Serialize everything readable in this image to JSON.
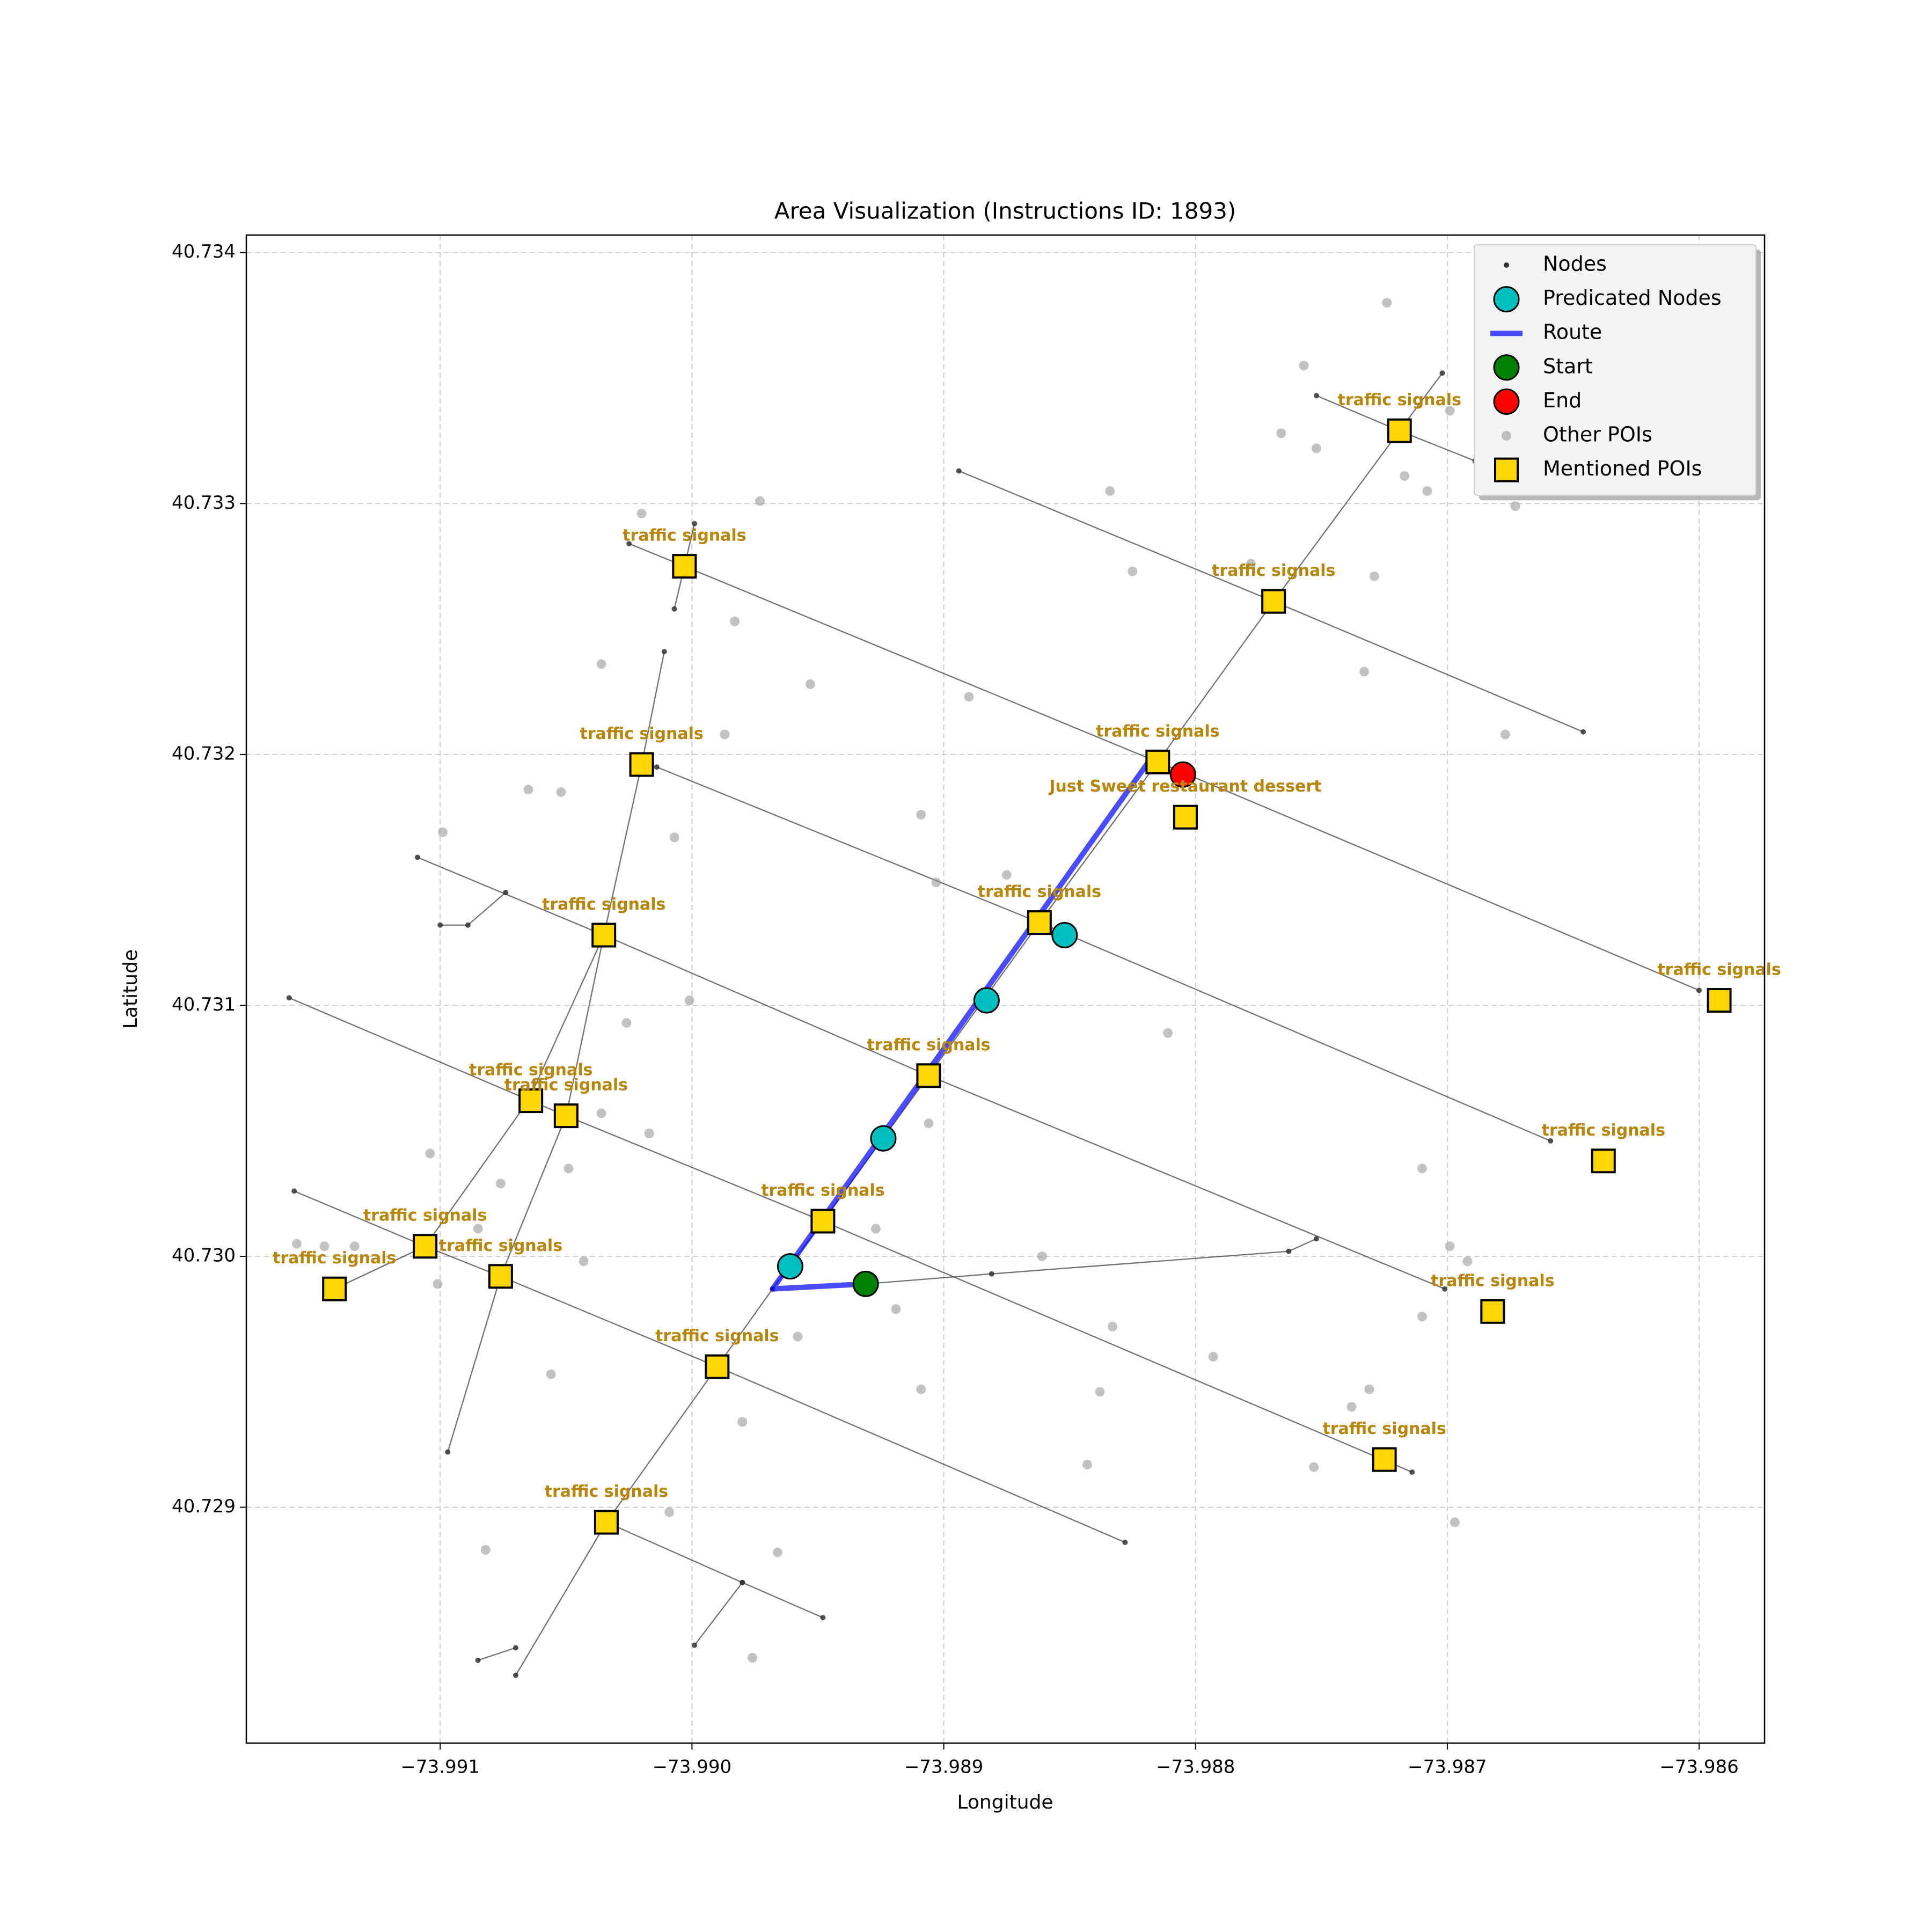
{
  "chart_data": {
    "type": "scatter",
    "title": "Area Visualization (Instructions ID: 1893)",
    "xlabel": "Longitude",
    "ylabel": "Latitude",
    "xlim": [
      -73.99177,
      -73.98574
    ],
    "ylim": [
      40.72806,
      40.73407
    ],
    "xticks": [
      {
        "value": -73.991,
        "label": "−73.991"
      },
      {
        "value": -73.99,
        "label": "−73.990"
      },
      {
        "value": -73.989,
        "label": "−73.989"
      },
      {
        "value": -73.988,
        "label": "−73.988"
      },
      {
        "value": -73.987,
        "label": "−73.987"
      },
      {
        "value": -73.986,
        "label": "−73.986"
      }
    ],
    "yticks": [
      40.729,
      {
        "value": 40.73,
        "label": "40.730"
      },
      40.731,
      40.732,
      40.733,
      40.734
    ],
    "grid": true,
    "legend": "upper right",
    "series": [
      {
        "name": "Nodes",
        "color": "#333333",
        "style": "line-dot",
        "x": [
          -73.98894,
          -73.98769,
          -73.98646,
          null,
          -73.99025,
          -73.99003,
          -73.98815,
          -73.986,
          null,
          -73.99014,
          -73.98862,
          -73.98659,
          null,
          -73.99109,
          -73.99035,
          -73.98906,
          -73.98701,
          null,
          -73.9916,
          -73.9905,
          -73.98948,
          -73.98714,
          null,
          -73.99158,
          -73.99106,
          -73.99076,
          -73.9899,
          -73.98828,
          null,
          -73.99034,
          -73.9898,
          -73.98948,
          null,
          -73.98752,
          -73.98719,
          -73.98689,
          null,
          -73.98702,
          -73.98719,
          -73.98769,
          -73.98815,
          -73.98862,
          -73.98906,
          -73.98948,
          -73.98968,
          -73.9899,
          -73.99034,
          -73.9907,
          null,
          -73.98999,
          -73.99003,
          -73.99007,
          null,
          -73.99011,
          -73.9902,
          -73.99035,
          -73.9905,
          -73.99076,
          -73.99097,
          null,
          -73.99035,
          -73.99065,
          -73.99106,
          -73.99142,
          null,
          -73.991,
          -73.99089,
          -73.99074,
          null,
          -73.99085,
          -73.9907,
          null,
          -73.98999,
          -73.9898,
          null,
          -73.98931,
          -73.98881,
          -73.98763,
          -73.98752
        ],
        "y": [
          40.73313,
          40.73261,
          40.73209,
          null,
          40.73284,
          40.73275,
          40.73197,
          40.73106,
          null,
          40.73195,
          40.73133,
          40.73046,
          null,
          40.73159,
          40.73128,
          40.73072,
          40.72987,
          null,
          40.73103,
          40.73056,
          40.73014,
          40.72914,
          null,
          40.73026,
          40.73004,
          40.72992,
          40.72956,
          40.72886,
          null,
          40.72894,
          40.7287,
          40.72856,
          null,
          40.73343,
          40.73329,
          40.73317,
          null,
          40.73352,
          40.73329,
          40.73261,
          40.73197,
          40.73133,
          40.73072,
          40.73014,
          40.72987,
          40.72956,
          40.72894,
          40.72833,
          null,
          40.73292,
          40.73275,
          40.73258,
          null,
          40.73241,
          40.73196,
          40.73128,
          40.73056,
          40.72992,
          40.72922,
          null,
          40.73128,
          40.73062,
          40.73004,
          40.72987,
          null,
          40.73132,
          40.73132,
          40.73145,
          null,
          40.72839,
          40.72844,
          null,
          40.72845,
          40.7287,
          null,
          40.72989,
          40.72993,
          40.73002,
          40.73007
        ]
      },
      {
        "name": "Predicated Nodes",
        "color": "#00bfbf",
        "style": "circle",
        "x": [
          -73.98852,
          -73.98883,
          -73.98924,
          -73.98961
        ],
        "y": [
          40.73128,
          40.73102,
          40.73047,
          40.72996
        ]
      },
      {
        "name": "Route",
        "color": "#0000ff",
        "style": "line",
        "x": [
          -73.98818,
          -73.98968,
          -73.98931
        ],
        "y": [
          40.73198,
          40.72987,
          40.72989
        ]
      },
      {
        "name": "Start",
        "color": "#008000",
        "style": "circle",
        "x": [
          -73.98931
        ],
        "y": [
          40.72989
        ]
      },
      {
        "name": "End",
        "color": "#ff0000",
        "style": "circle",
        "x": [
          -73.98805
        ],
        "y": [
          40.73192
        ]
      },
      {
        "name": "Other POIs",
        "color": "#999999",
        "style": "dot",
        "x": [
          -73.98724,
          -73.98757,
          -73.98766,
          -73.98752,
          -73.98717,
          -73.98708,
          -73.98699,
          -73.98673,
          -73.98834,
          -73.98825,
          -73.98778,
          -73.98729,
          -73.98733,
          -73.98677,
          -73.98973,
          -73.9902,
          -73.98983,
          -73.98953,
          -73.9889,
          -73.99036,
          -73.98987,
          -73.99065,
          -73.99052,
          -73.99099,
          -73.99007,
          -73.98909,
          -73.98903,
          -73.98875,
          -73.99001,
          -73.99026,
          -73.98811,
          -73.98906,
          -73.99036,
          -73.99017,
          -73.99049,
          -73.99104,
          -73.99076,
          -73.9871,
          -73.98699,
          -73.98692,
          -73.99157,
          -73.99146,
          -73.99134,
          -73.99085,
          -73.99043,
          -73.99101,
          -73.98861,
          -73.98927,
          -73.9871,
          -73.98958,
          -73.98919,
          -73.98833,
          -73.98793,
          -73.99056,
          -73.9898,
          -73.98909,
          -73.98838,
          -73.98731,
          -73.98738,
          -73.98843,
          -73.98753,
          -73.98697,
          -73.99009,
          -73.99082,
          -73.98966,
          -73.98976
        ],
        "y": [
          40.7338,
          40.73355,
          40.73328,
          40.73322,
          40.73311,
          40.73305,
          40.73337,
          40.73299,
          40.73305,
          40.73273,
          40.73276,
          40.73271,
          40.73233,
          40.73208,
          40.73301,
          40.73296,
          40.73253,
          40.73228,
          40.73223,
          40.73236,
          40.73208,
          40.73186,
          40.73185,
          40.73169,
          40.73167,
          40.73176,
          40.73149,
          40.73152,
          40.73102,
          40.73093,
          40.73089,
          40.73053,
          40.73057,
          40.73049,
          40.73035,
          40.73041,
          40.73029,
          40.73035,
          40.73004,
          40.72998,
          40.73005,
          40.73004,
          40.73004,
          40.73011,
          40.72998,
          40.72989,
          40.73,
          40.73011,
          40.72976,
          40.72968,
          40.72979,
          40.72972,
          40.7296,
          40.72953,
          40.72934,
          40.72947,
          40.72946,
          40.72947,
          40.7294,
          40.72917,
          40.72916,
          40.72894,
          40.72898,
          40.72883,
          40.72882,
          40.7284
        ]
      },
      {
        "name": "Mentioned POIs",
        "color": "#ffd700",
        "style": "square",
        "x": [
          -73.99003,
          -73.98719,
          -73.98769,
          -73.9902,
          -73.98815,
          -73.98804,
          -73.99035,
          -73.98862,
          -73.98592,
          -73.98906,
          -73.99064,
          -73.9905,
          -73.98638,
          -73.98948,
          -73.99106,
          -73.99076,
          -73.99142,
          -73.98682,
          -73.9899,
          -73.98725,
          -73.99034
        ],
        "y": [
          40.73275,
          40.73329,
          40.73261,
          40.73196,
          40.73197,
          40.73175,
          40.73128,
          40.73133,
          40.73102,
          40.73072,
          40.73062,
          40.73056,
          40.73038,
          40.73014,
          40.73004,
          40.72992,
          40.72987,
          40.72978,
          40.72956,
          40.72919,
          40.72894
        ],
        "labels": [
          "traffic signals",
          "traffic signals",
          "traffic signals",
          "traffic signals",
          "traffic signals",
          "Just Sweet restaurant dessert",
          "traffic signals",
          "traffic signals",
          "traffic signals",
          "traffic signals",
          "traffic signals",
          "traffic signals",
          "traffic signals",
          "traffic signals",
          "traffic signals",
          "traffic signals",
          "traffic signals",
          "traffic signals",
          "traffic signals",
          "traffic signals",
          "traffic signals"
        ]
      }
    ]
  }
}
